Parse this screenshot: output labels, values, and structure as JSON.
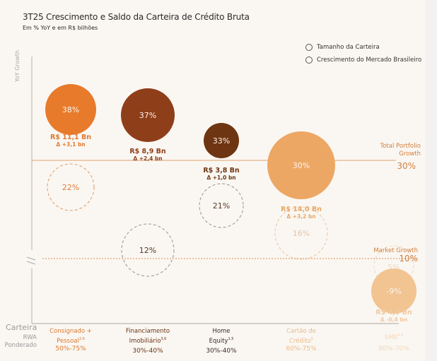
{
  "header": {
    "title": "3T25 Crescimento e Saldo da Carteira de Crédito Bruta",
    "subtitle": "Em % YoY e em R$ bilhões"
  },
  "legend": {
    "items": [
      {
        "label": "Tamanho da Carteira",
        "icon": "circle-outline-icon"
      },
      {
        "label": "Crescimento do Mercado Brasileiro",
        "icon": "circle-outline-icon"
      }
    ]
  },
  "axis": {
    "y_label": "YoY Growth",
    "carteira_label": "Carteira",
    "rwa_label_1": "RWA",
    "rwa_label_2": "Ponderado"
  },
  "colors": {
    "consignado": "#e87a2b",
    "financiamento": "#8f3e1a",
    "home_equity": "#6e3512",
    "cartao": "#eda765",
    "smb": "#f1c491",
    "ref_line": "#e0a270",
    "dashed": "#a09a95"
  },
  "chart_data": {
    "type": "bubble",
    "title": "3T25 Crescimento e Saldo da Carteira de Crédito Bruta",
    "subtitle": "Em % YoY e em R$ bilhões",
    "ylabel": "YoY Growth",
    "y_break": true,
    "ylim": [
      -15,
      45
    ],
    "legend_position": "top-right",
    "reference_lines": [
      {
        "name": "Total Portfolio Growth",
        "label_line1": "Total Portfolio",
        "label_line2": "Growth",
        "value": 30,
        "value_label": "30%",
        "style": "solid"
      },
      {
        "name": "Market Growth",
        "label_line1": "Market Growth",
        "value": 10,
        "value_label": "10%",
        "style": "dotted"
      }
    ],
    "series": [
      {
        "category": "Consignado + Pessoal",
        "label_line1": "Consignado +",
        "label_line2": "Pessoal",
        "superscript": "2,6",
        "rwa": "50%-75%",
        "growth": 38,
        "growth_label": "38%",
        "portfolio_bn": 11.1,
        "portfolio_label": "R$ 11,1 Bn",
        "delta_label": "Δ +3,1 bn",
        "market_growth": 22,
        "market_label": "22%"
      },
      {
        "category": "Financiamento Imobiliário",
        "label_line1": "Financiamento",
        "label_line2": "Imobiliário",
        "superscript": "3,6",
        "rwa": "30%-40%",
        "growth": 37,
        "growth_label": "37%",
        "portfolio_bn": 8.9,
        "portfolio_label": "R$ 8,9 Bn",
        "delta_label": "Δ +2,4 bn",
        "market_growth": 12,
        "market_label": "12%"
      },
      {
        "category": "Home Equity",
        "label_line1": "Home",
        "label_line2": "Equity",
        "superscript": "1,5",
        "rwa": "30%-40%",
        "growth": 33,
        "growth_label": "33%",
        "portfolio_bn": 3.8,
        "portfolio_label": "R$ 3,8 Bn",
        "delta_label": "Δ +1,0 bn",
        "market_growth": 21,
        "market_label": "21%"
      },
      {
        "category": "Cartão de Crédito",
        "label_line1": "Cartão de",
        "label_line2": "Crédito",
        "superscript": "5",
        "rwa": "60%-75%",
        "growth": 30,
        "growth_label": "30%",
        "portfolio_bn": 14.0,
        "portfolio_label": "R$ 14,0 Bn",
        "delta_label": "Δ +3,2 bn",
        "market_growth": 16,
        "market_label": "16%"
      },
      {
        "category": "SMB",
        "label_line1": "SMB",
        "label_line2": "",
        "superscript": "4,6",
        "rwa": "80%-70%",
        "growth": -9,
        "growth_label": "-9%",
        "portfolio_bn": 4.0,
        "portfolio_label": "R$ 4,0 Bn",
        "delta_label": "Δ -0,4 bn",
        "market_growth": 5,
        "market_label": "5%"
      }
    ]
  }
}
